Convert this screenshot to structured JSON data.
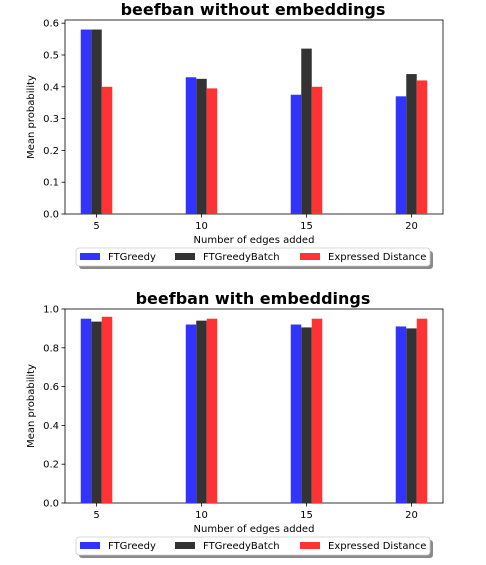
{
  "colors": {
    "FTGreedy": "#3333ff",
    "FTGreedyBatch": "#333333",
    "Expressed Distance": "#ff3333"
  },
  "chart_data": [
    {
      "type": "bar",
      "title": "beefban without embeddings",
      "xlabel": "Number of edges added",
      "ylabel": "Mean probability",
      "categories": [
        "5",
        "10",
        "15",
        "20"
      ],
      "ylim": [
        0,
        0.61
      ],
      "yticks": [
        "0.0",
        "0.1",
        "0.2",
        "0.3",
        "0.4",
        "0.5",
        "0.6"
      ],
      "legend_position": "below",
      "series": [
        {
          "name": "FTGreedy",
          "values": [
            0.58,
            0.43,
            0.375,
            0.37
          ]
        },
        {
          "name": "FTGreedyBatch",
          "values": [
            0.58,
            0.425,
            0.52,
            0.44
          ]
        },
        {
          "name": "Expressed Distance",
          "values": [
            0.4,
            0.395,
            0.4,
            0.42
          ]
        }
      ]
    },
    {
      "type": "bar",
      "title": "beefban with embeddings",
      "xlabel": "Number of edges added",
      "ylabel": "Mean probability",
      "categories": [
        "5",
        "10",
        "15",
        "20"
      ],
      "ylim": [
        0,
        1.0
      ],
      "yticks": [
        "0.0",
        "0.2",
        "0.4",
        "0.6",
        "0.8",
        "1.0"
      ],
      "legend_position": "below",
      "series": [
        {
          "name": "FTGreedy",
          "values": [
            0.95,
            0.92,
            0.92,
            0.91
          ]
        },
        {
          "name": "FTGreedyBatch",
          "values": [
            0.935,
            0.94,
            0.905,
            0.9
          ]
        },
        {
          "name": "Expressed Distance",
          "values": [
            0.96,
            0.95,
            0.95,
            0.95
          ]
        }
      ]
    }
  ]
}
